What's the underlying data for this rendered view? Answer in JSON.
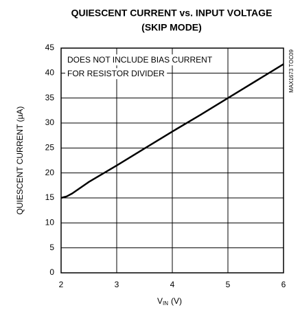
{
  "chart_data": {
    "type": "line",
    "title": "QUIESCENT CURRENT vs. INPUT VOLTAGE",
    "subtitle": "(SKIP MODE)",
    "xlabel": [
      "V",
      "IN",
      "(V)"
    ],
    "ylabel": "QUIESCENT CURRENT (µA)",
    "annotations": [
      "DOES NOT INCLUDE BIAS CURRENT",
      "FOR RESISTOR DIVIDER"
    ],
    "watermark": "MAX1673 TOC09",
    "x": [
      2,
      2.1,
      2.2,
      2.5,
      3,
      3.5,
      4,
      4.5,
      5,
      5.5,
      6
    ],
    "series": [
      {
        "color": "#000000",
        "values": [
          15,
          15.3,
          15.9,
          18.2,
          21.5,
          24.9,
          28.3,
          31.6,
          35,
          38.4,
          41.8
        ]
      }
    ],
    "xlim": [
      2,
      6
    ],
    "xticks": [
      2,
      3,
      4,
      5,
      6
    ],
    "ylim": [
      0,
      45
    ],
    "yticks": [
      0,
      5,
      10,
      15,
      20,
      25,
      30,
      35,
      40,
      45
    ],
    "grid": true
  }
}
